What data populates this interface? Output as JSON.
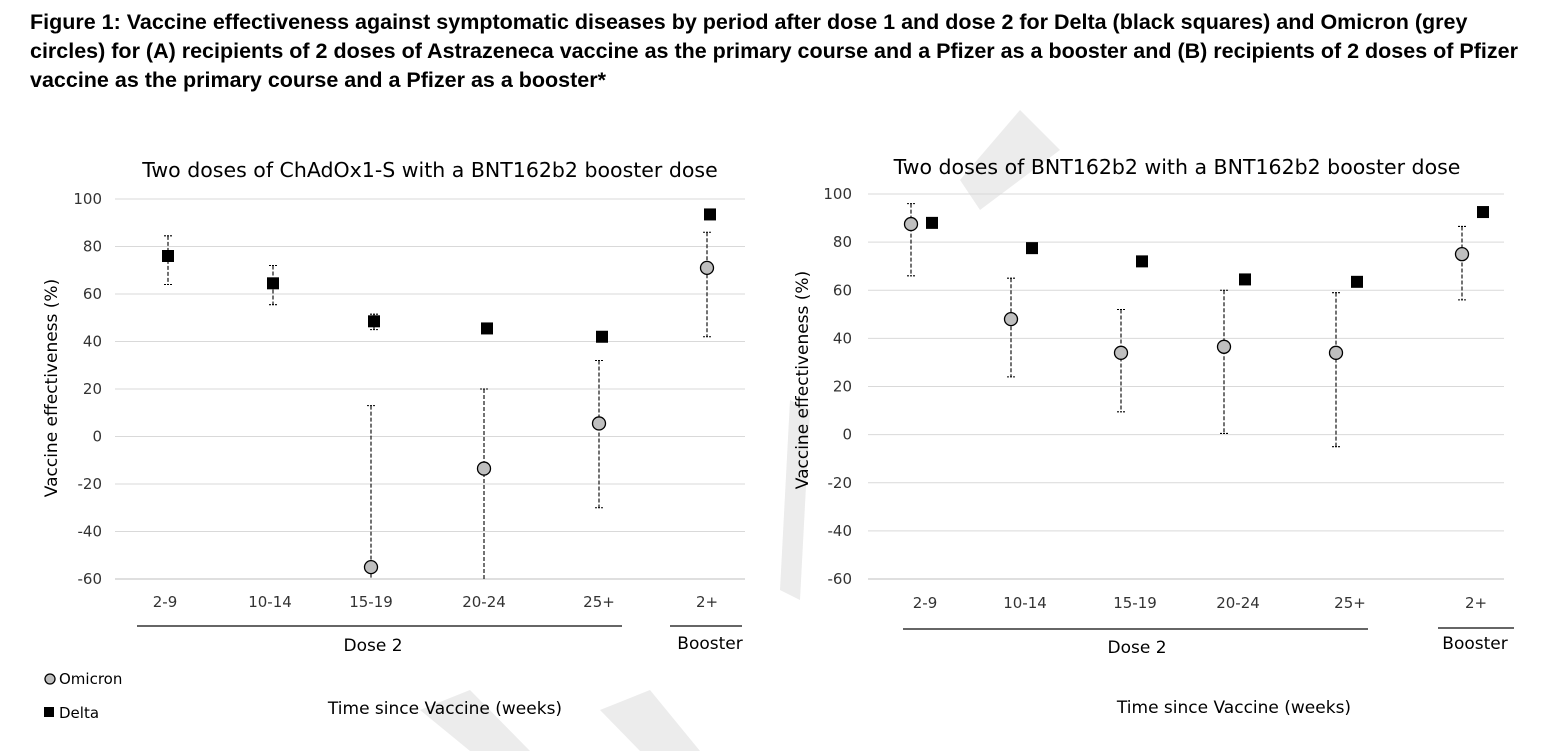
{
  "caption": "Figure 1: Vaccine effectiveness against symptomatic diseases by period after dose 1 and dose 2 for Delta (black squares) and Omicron (grey circles) for (A) recipients of 2 doses of Astrazeneca vaccine as the primary course and a Pfizer as a booster and (B) recipients of 2 doses of Pfizer vaccine as the primary course and a Pfizer as a booster*",
  "legend": {
    "omicron": "Omicron",
    "delta": "Delta"
  },
  "colors": {
    "omicron_fill": "#bfbfbf",
    "delta_fill": "#000000",
    "grid": "#d9d9d9",
    "watermark": "#ececec"
  },
  "chart_data": [
    {
      "type": "scatter",
      "title": "Two doses of ChAdOx1-S with a BNT162b2 booster dose",
      "ylabel": "Vaccine effectiveness (%)",
      "xlabel": "Time since Vaccine (weeks)",
      "ylim": [
        -60,
        100
      ],
      "yticks": [
        100,
        80,
        60,
        40,
        20,
        0,
        -20,
        -40,
        -60
      ],
      "grid": true,
      "categories": [
        "2-9",
        "10-14",
        "15-19",
        "20-24",
        "25+",
        "2+"
      ],
      "groups": [
        {
          "label": "Dose 2",
          "categories": [
            "2-9",
            "10-14",
            "15-19",
            "20-24",
            "25+"
          ]
        },
        {
          "label": "Booster",
          "categories": [
            "2+"
          ]
        }
      ],
      "series": [
        {
          "name": "Omicron",
          "marker": "circle",
          "values": [
            null,
            null,
            -55,
            -13.5,
            5.5,
            71
          ],
          "lower": [
            null,
            null,
            -60,
            -60,
            -30,
            42
          ],
          "upper": [
            null,
            null,
            13,
            20,
            32,
            86
          ]
        },
        {
          "name": "Delta",
          "marker": "square",
          "values": [
            76,
            64.5,
            48.5,
            45.5,
            42,
            93.5
          ],
          "lower": [
            64,
            55.5,
            45,
            44,
            41,
            null
          ],
          "upper": [
            84.5,
            72,
            51.5,
            47,
            43,
            null
          ]
        }
      ]
    },
    {
      "type": "scatter",
      "title": "Two doses of BNT162b2 with a BNT162b2 booster dose",
      "ylabel": "Vaccine effectiveness (%)",
      "xlabel": "Time since Vaccine (weeks)",
      "ylim": [
        -60,
        100
      ],
      "yticks": [
        100,
        80,
        60,
        40,
        20,
        0,
        -20,
        -40,
        -60
      ],
      "grid": true,
      "categories": [
        "2-9",
        "10-14",
        "15-19",
        "20-24",
        "25+",
        "2+"
      ],
      "groups": [
        {
          "label": "Dose 2",
          "categories": [
            "2-9",
            "10-14",
            "15-19",
            "20-24",
            "25+"
          ]
        },
        {
          "label": "Booster",
          "categories": [
            "2+"
          ]
        }
      ],
      "series": [
        {
          "name": "Omicron",
          "marker": "circle",
          "values": [
            87.5,
            48,
            34,
            36.5,
            34,
            75
          ],
          "lower": [
            66,
            24,
            9.5,
            0.5,
            -5,
            56
          ],
          "upper": [
            96,
            65,
            52,
            60,
            59,
            86.5
          ]
        },
        {
          "name": "Delta",
          "marker": "square",
          "values": [
            88,
            77.5,
            72,
            64.5,
            63.5,
            92.5
          ],
          "lower": [
            null,
            null,
            null,
            null,
            null,
            null
          ],
          "upper": [
            null,
            null,
            null,
            null,
            null,
            null
          ]
        }
      ]
    }
  ]
}
